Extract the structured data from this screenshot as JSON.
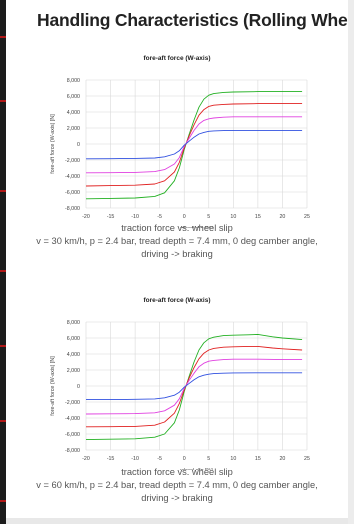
{
  "page": {
    "title": "Handling Characteristics (Rolling Wheel)"
  },
  "charts": [
    {
      "caption_line1": "traction force vs. wheel slip",
      "caption_line2": "v = 30 km/h, p = 2.4 bar, tread depth = 7.4 mm, 0 deg camber angle,",
      "caption_line3": "driving -> braking"
    },
    {
      "caption_line1": "traction force vs. wheel slip",
      "caption_line2": "v = 60 km/h, p = 2.4 bar, tread depth = 7.4 mm, 0 deg camber angle,",
      "caption_line3": "driving -> braking"
    }
  ],
  "chart_data": [
    {
      "type": "line",
      "title": "fore-aft force (W-axis)",
      "xlabel": "wheel slip [%]",
      "ylabel": "fore-aft force (W-axis) [N]",
      "xlim": [
        -20,
        25
      ],
      "ylim": [
        -8000,
        8000
      ],
      "xticks": [
        -20,
        -15,
        -10,
        -5,
        0,
        5,
        10,
        15,
        20,
        25
      ],
      "yticks": [
        -8000,
        -6000,
        -4000,
        -2000,
        0,
        2000,
        4000,
        6000,
        8000
      ],
      "ytick_labels": [
        "-8,000",
        "-6,000",
        "-4,000",
        "-2,000",
        "0",
        "2,000",
        "4,000",
        "6,000",
        "8,000"
      ],
      "grid": true,
      "series": [
        {
          "color": "#22b022",
          "x": [
            -20,
            -15,
            -10,
            -6,
            -4,
            -2,
            -1,
            0,
            1,
            2,
            3,
            4,
            5,
            6,
            8,
            10,
            15,
            20,
            24
          ],
          "y": [
            -6850,
            -6800,
            -6750,
            -6550,
            -6100,
            -4600,
            -3000,
            -700,
            1200,
            3000,
            4600,
            5600,
            6100,
            6300,
            6450,
            6500,
            6550,
            6550,
            6550
          ]
        },
        {
          "color": "#e02020",
          "x": [
            -20,
            -15,
            -10,
            -6,
            -4,
            -2,
            -1,
            0,
            1,
            2,
            3,
            4,
            5,
            6,
            8,
            10,
            15,
            20,
            24
          ],
          "y": [
            -5250,
            -5200,
            -5150,
            -5000,
            -4600,
            -3500,
            -2300,
            -500,
            1000,
            2400,
            3600,
            4300,
            4700,
            4850,
            4950,
            5000,
            5050,
            5050,
            5050
          ]
        },
        {
          "color": "#e040e0",
          "x": [
            -20,
            -15,
            -10,
            -6,
            -4,
            -2,
            -1,
            0,
            1,
            2,
            3,
            4,
            5,
            6,
            8,
            10,
            15,
            20,
            24
          ],
          "y": [
            -3600,
            -3580,
            -3550,
            -3450,
            -3200,
            -2500,
            -1700,
            -300,
            700,
            1700,
            2500,
            2950,
            3150,
            3250,
            3350,
            3400,
            3400,
            3400,
            3400
          ]
        },
        {
          "color": "#3050e0",
          "x": [
            -20,
            -15,
            -10,
            -6,
            -4,
            -2,
            -1,
            0,
            1,
            2,
            3,
            4,
            5,
            6,
            8,
            10,
            15,
            20,
            24
          ],
          "y": [
            -1850,
            -1830,
            -1800,
            -1750,
            -1600,
            -1250,
            -850,
            -150,
            350,
            850,
            1250,
            1450,
            1580,
            1630,
            1680,
            1700,
            1700,
            1700,
            1700
          ]
        }
      ]
    },
    {
      "type": "line",
      "title": "fore-aft force (W-axis)",
      "xlabel": "wheel slip [%]",
      "ylabel": "fore-aft force (W-axis) [N]",
      "xlim": [
        -20,
        25
      ],
      "ylim": [
        -8000,
        8000
      ],
      "xticks": [
        -20,
        -15,
        -10,
        -5,
        0,
        5,
        10,
        15,
        20,
        25
      ],
      "yticks": [
        -8000,
        -6000,
        -4000,
        -2000,
        0,
        2000,
        4000,
        6000,
        8000
      ],
      "ytick_labels": [
        "-8,000",
        "-6,000",
        "-4,000",
        "-2,000",
        "0",
        "2,000",
        "4,000",
        "6,000",
        "8,000"
      ],
      "grid": true,
      "series": [
        {
          "color": "#22b022",
          "x": [
            -20,
            -15,
            -10,
            -6,
            -4,
            -2,
            -1,
            0,
            1,
            2,
            3,
            4,
            5,
            6,
            8,
            10,
            13,
            15,
            18,
            20,
            24
          ],
          "y": [
            -6700,
            -6650,
            -6600,
            -6400,
            -6000,
            -4600,
            -3000,
            -700,
            1200,
            3000,
            4500,
            5400,
            5900,
            6100,
            6300,
            6350,
            6400,
            6450,
            6150,
            6000,
            5800
          ]
        },
        {
          "color": "#e02020",
          "x": [
            -20,
            -15,
            -10,
            -6,
            -4,
            -2,
            -1,
            0,
            1,
            2,
            3,
            4,
            5,
            6,
            8,
            10,
            13,
            15,
            18,
            20,
            24
          ],
          "y": [
            -5100,
            -5080,
            -5050,
            -4900,
            -4500,
            -3400,
            -2200,
            -500,
            1000,
            2300,
            3400,
            4100,
            4500,
            4700,
            4850,
            4900,
            4950,
            4950,
            4750,
            4650,
            4500
          ]
        },
        {
          "color": "#e040e0",
          "x": [
            -20,
            -15,
            -10,
            -6,
            -4,
            -2,
            -1,
            0,
            1,
            2,
            3,
            4,
            5,
            6,
            8,
            10,
            15,
            20,
            24
          ],
          "y": [
            -3500,
            -3480,
            -3450,
            -3350,
            -3100,
            -2400,
            -1600,
            -300,
            700,
            1600,
            2400,
            2850,
            3100,
            3200,
            3300,
            3350,
            3350,
            3300,
            3300
          ]
        },
        {
          "color": "#3050e0",
          "x": [
            -20,
            -15,
            -10,
            -6,
            -4,
            -2,
            -1,
            0,
            1,
            2,
            3,
            4,
            5,
            6,
            8,
            10,
            15,
            20,
            24
          ],
          "y": [
            -1700,
            -1690,
            -1670,
            -1620,
            -1480,
            -1150,
            -780,
            -150,
            320,
            780,
            1150,
            1350,
            1480,
            1550,
            1600,
            1630,
            1650,
            1650,
            1650
          ]
        }
      ]
    }
  ]
}
